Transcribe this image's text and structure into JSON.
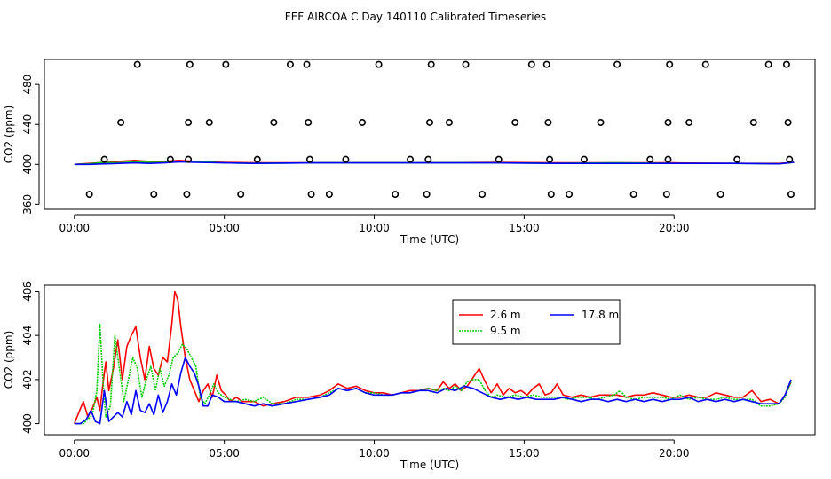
{
  "title": "FEF AIRCOA C  Day 140110  Calibrated Timeseries",
  "chart_data": [
    {
      "type": "scatter+line",
      "xlabel": "Time (UTC)",
      "ylabel": "CO2 (ppm)",
      "xlim": [
        -1.0,
        24.7
      ],
      "ylim": [
        355,
        505
      ],
      "xticks": [
        0,
        5,
        10,
        15,
        20
      ],
      "xtick_labels": [
        "00:00",
        "05:00",
        "10:00",
        "15:00",
        "20:00"
      ],
      "yticks": [
        360,
        400,
        440,
        480
      ],
      "ytick_labels": [
        "360",
        "400",
        "440",
        "480"
      ],
      "calibration_points": [
        {
          "x": 0.5,
          "y": 370
        },
        {
          "x": 1.0,
          "y": 405
        },
        {
          "x": 1.55,
          "y": 442
        },
        {
          "x": 2.1,
          "y": 500
        },
        {
          "x": 2.65,
          "y": 370
        },
        {
          "x": 3.2,
          "y": 405
        },
        {
          "x": 3.75,
          "y": 370
        },
        {
          "x": 3.8,
          "y": 405
        },
        {
          "x": 3.8,
          "y": 442
        },
        {
          "x": 3.85,
          "y": 500
        },
        {
          "x": 4.5,
          "y": 442
        },
        {
          "x": 5.05,
          "y": 500
        },
        {
          "x": 5.55,
          "y": 370
        },
        {
          "x": 6.1,
          "y": 405
        },
        {
          "x": 6.65,
          "y": 442
        },
        {
          "x": 7.2,
          "y": 500
        },
        {
          "x": 7.75,
          "y": 500
        },
        {
          "x": 7.8,
          "y": 442
        },
        {
          "x": 7.85,
          "y": 405
        },
        {
          "x": 7.9,
          "y": 370
        },
        {
          "x": 8.5,
          "y": 370
        },
        {
          "x": 9.05,
          "y": 405
        },
        {
          "x": 9.6,
          "y": 442
        },
        {
          "x": 10.15,
          "y": 500
        },
        {
          "x": 10.7,
          "y": 370
        },
        {
          "x": 11.2,
          "y": 405
        },
        {
          "x": 11.75,
          "y": 370
        },
        {
          "x": 11.8,
          "y": 405
        },
        {
          "x": 11.85,
          "y": 442
        },
        {
          "x": 11.9,
          "y": 500
        },
        {
          "x": 12.5,
          "y": 442
        },
        {
          "x": 13.05,
          "y": 500
        },
        {
          "x": 13.6,
          "y": 370
        },
        {
          "x": 14.15,
          "y": 405
        },
        {
          "x": 14.7,
          "y": 442
        },
        {
          "x": 15.25,
          "y": 500
        },
        {
          "x": 15.75,
          "y": 500
        },
        {
          "x": 15.8,
          "y": 442
        },
        {
          "x": 15.85,
          "y": 405
        },
        {
          "x": 15.9,
          "y": 370
        },
        {
          "x": 16.5,
          "y": 370
        },
        {
          "x": 17.0,
          "y": 405
        },
        {
          "x": 17.55,
          "y": 442
        },
        {
          "x": 18.1,
          "y": 500
        },
        {
          "x": 18.65,
          "y": 370
        },
        {
          "x": 19.2,
          "y": 405
        },
        {
          "x": 19.75,
          "y": 370
        },
        {
          "x": 19.8,
          "y": 405
        },
        {
          "x": 19.8,
          "y": 442
        },
        {
          "x": 19.85,
          "y": 500
        },
        {
          "x": 20.5,
          "y": 442
        },
        {
          "x": 21.05,
          "y": 500
        },
        {
          "x": 21.55,
          "y": 370
        },
        {
          "x": 22.1,
          "y": 405
        },
        {
          "x": 22.65,
          "y": 442
        },
        {
          "x": 23.15,
          "y": 500
        },
        {
          "x": 23.75,
          "y": 500
        },
        {
          "x": 23.8,
          "y": 442
        },
        {
          "x": 23.85,
          "y": 405
        },
        {
          "x": 23.9,
          "y": 370
        }
      ],
      "series": [
        {
          "color": "#ff0000",
          "x": [
            0,
            0.5,
            1,
            1.5,
            2,
            2.5,
            3,
            3.5,
            4,
            5,
            6,
            8,
            10,
            12,
            14,
            16,
            18,
            20,
            22,
            23.5,
            24
          ],
          "values": [
            400,
            401,
            402,
            403,
            404,
            403,
            403,
            404,
            403,
            402,
            401.5,
            401.5,
            401.5,
            401.5,
            402,
            401.5,
            401.5,
            401.5,
            401,
            401,
            402
          ]
        },
        {
          "color": "#00cc00",
          "x": [
            0,
            0.5,
            1,
            1.5,
            2,
            2.5,
            3,
            3.5,
            4,
            5,
            6,
            8,
            10,
            12,
            14,
            16,
            18,
            20,
            22,
            23.5,
            24
          ],
          "values": [
            400,
            400.5,
            402,
            401.5,
            402.5,
            402,
            402,
            403,
            403,
            401.5,
            401,
            401.5,
            401.5,
            401.5,
            401.5,
            401,
            401.5,
            401,
            401,
            400.5,
            402
          ]
        },
        {
          "color": "#0000ff",
          "x": [
            0,
            0.5,
            1,
            1.5,
            2,
            2.5,
            3,
            3.5,
            4,
            5,
            6,
            8,
            10,
            12,
            14,
            16,
            18,
            20,
            22,
            23.5,
            24
          ],
          "values": [
            400,
            400,
            400.5,
            401,
            401.5,
            401,
            401.5,
            402.5,
            402,
            401.5,
            401,
            401.5,
            401.5,
            401.5,
            401.5,
            401,
            401,
            401,
            401,
            400.5,
            402
          ]
        }
      ]
    },
    {
      "type": "line",
      "xlabel": "Time (UTC)",
      "ylabel": "CO2 (ppm)",
      "xlim": [
        -1.0,
        24.7
      ],
      "ylim": [
        399.5,
        406.3
      ],
      "xticks": [
        0,
        5,
        10,
        15,
        20
      ],
      "xtick_labels": [
        "00:00",
        "05:00",
        "10:00",
        "15:00",
        "20:00"
      ],
      "yticks": [
        400,
        402,
        404,
        406
      ],
      "ytick_labels": [
        "400",
        "402",
        "404",
        "406"
      ],
      "legend": {
        "position": "top-center",
        "entries": [
          "2.6 m",
          "9.5 m",
          "17.8 m"
        ]
      },
      "series": [
        {
          "name": "2.6 m",
          "color": "#ff0000",
          "style": "solid",
          "x": [
            0.0,
            0.15,
            0.3,
            0.45,
            0.6,
            0.75,
            0.85,
            0.95,
            1.05,
            1.15,
            1.3,
            1.45,
            1.6,
            1.75,
            1.9,
            2.05,
            2.2,
            2.35,
            2.5,
            2.65,
            2.8,
            2.95,
            3.1,
            3.25,
            3.35,
            3.45,
            3.55,
            3.7,
            3.85,
            4.0,
            4.15,
            4.3,
            4.45,
            4.6,
            4.75,
            4.9,
            5.05,
            5.2,
            5.4,
            5.6,
            5.8,
            6.0,
            6.3,
            6.6,
            7.0,
            7.4,
            7.8,
            8.2,
            8.5,
            8.8,
            9.1,
            9.4,
            9.7,
            10.0,
            10.3,
            10.6,
            10.9,
            11.2,
            11.5,
            11.8,
            12.1,
            12.3,
            12.5,
            12.7,
            12.9,
            13.1,
            13.3,
            13.5,
            13.7,
            13.9,
            14.1,
            14.3,
            14.5,
            14.7,
            14.9,
            15.1,
            15.3,
            15.5,
            15.7,
            15.9,
            16.1,
            16.3,
            16.6,
            16.9,
            17.2,
            17.5,
            17.8,
            18.1,
            18.4,
            18.7,
            19.0,
            19.3,
            19.6,
            19.9,
            20.2,
            20.5,
            20.8,
            21.1,
            21.4,
            21.7,
            22.0,
            22.3,
            22.6,
            22.9,
            23.2,
            23.5,
            23.7,
            23.9
          ],
          "values": [
            400.0,
            400.5,
            401.0,
            400.3,
            400.7,
            401.2,
            400.6,
            401.8,
            402.8,
            401.5,
            402.5,
            403.8,
            402.0,
            403.5,
            404.0,
            404.4,
            403.0,
            402.0,
            403.5,
            402.5,
            402.2,
            403.0,
            402.8,
            404.5,
            406.0,
            405.6,
            404.4,
            403.0,
            402.0,
            401.5,
            401.0,
            401.5,
            401.8,
            401.2,
            402.2,
            401.5,
            401.3,
            401.0,
            401.2,
            401.0,
            401.0,
            401.0,
            400.8,
            400.9,
            401.0,
            401.2,
            401.2,
            401.3,
            401.5,
            401.8,
            401.6,
            401.7,
            401.5,
            401.4,
            401.4,
            401.3,
            401.4,
            401.5,
            401.5,
            401.6,
            401.5,
            401.9,
            401.6,
            401.8,
            401.5,
            401.7,
            402.1,
            402.5,
            401.9,
            401.4,
            401.8,
            401.3,
            401.6,
            401.4,
            401.5,
            401.3,
            401.6,
            401.8,
            401.3,
            401.4,
            401.8,
            401.3,
            401.2,
            401.3,
            401.2,
            401.3,
            401.3,
            401.3,
            401.2,
            401.3,
            401.3,
            401.4,
            401.3,
            401.2,
            401.2,
            401.3,
            401.2,
            401.2,
            401.4,
            401.3,
            401.2,
            401.2,
            401.5,
            401.0,
            401.1,
            400.9,
            401.3,
            401.9
          ]
        },
        {
          "name": "9.5 m",
          "color": "#00cc00",
          "style": "dotted",
          "x": [
            0.0,
            0.3,
            0.6,
            0.75,
            0.85,
            0.95,
            1.05,
            1.2,
            1.35,
            1.5,
            1.65,
            1.8,
            1.95,
            2.1,
            2.25,
            2.4,
            2.55,
            2.7,
            2.85,
            3.0,
            3.15,
            3.3,
            3.45,
            3.6,
            3.75,
            3.9,
            4.05,
            4.2,
            4.35,
            4.5,
            4.65,
            4.8,
            5.0,
            5.2,
            5.4,
            5.7,
            6.0,
            6.3,
            6.6,
            7.0,
            7.4,
            7.8,
            8.2,
            8.5,
            8.8,
            9.1,
            9.4,
            9.7,
            10.0,
            10.3,
            10.6,
            10.9,
            11.2,
            11.5,
            11.8,
            12.1,
            12.3,
            12.5,
            12.7,
            12.9,
            13.1,
            13.3,
            13.5,
            13.7,
            13.9,
            14.1,
            14.4,
            14.7,
            15.0,
            15.3,
            15.6,
            15.9,
            16.2,
            16.5,
            16.8,
            17.1,
            17.4,
            17.7,
            18.0,
            18.2,
            18.4,
            18.7,
            19.0,
            19.3,
            19.6,
            19.9,
            20.2,
            20.5,
            20.8,
            21.1,
            21.4,
            21.7,
            22.0,
            22.3,
            22.6,
            22.9,
            23.2,
            23.5,
            23.7,
            23.9
          ],
          "values": [
            400.0,
            400.0,
            400.4,
            401.5,
            404.5,
            402.0,
            400.3,
            400.8,
            404.0,
            402.5,
            401.0,
            402.0,
            403.0,
            402.5,
            401.2,
            402.0,
            402.6,
            401.5,
            402.5,
            401.7,
            402.2,
            403.0,
            403.2,
            403.6,
            403.4,
            403.0,
            402.6,
            401.2,
            400.9,
            401.3,
            401.8,
            401.4,
            401.2,
            401.1,
            401.0,
            401.1,
            401.0,
            401.2,
            400.9,
            400.9,
            401.1,
            401.1,
            401.2,
            401.4,
            401.6,
            401.5,
            401.6,
            401.4,
            401.4,
            401.3,
            401.3,
            401.4,
            401.4,
            401.5,
            401.6,
            401.5,
            401.6,
            401.5,
            401.7,
            401.5,
            401.9,
            402.0,
            402.0,
            401.5,
            401.2,
            401.3,
            401.2,
            401.3,
            401.2,
            401.3,
            401.2,
            401.2,
            401.2,
            401.1,
            401.2,
            401.2,
            401.1,
            401.2,
            401.3,
            401.5,
            401.2,
            401.1,
            401.2,
            401.2,
            401.2,
            401.1,
            401.3,
            401.1,
            401.2,
            401.1,
            401.1,
            401.2,
            401.1,
            401.1,
            401.1,
            400.8,
            400.8,
            400.9,
            401.2,
            401.9
          ]
        },
        {
          "name": "17.8 m",
          "color": "#0000ff",
          "style": "solid",
          "x": [
            0.0,
            0.2,
            0.4,
            0.55,
            0.7,
            0.85,
            1.0,
            1.15,
            1.3,
            1.45,
            1.6,
            1.75,
            1.9,
            2.05,
            2.2,
            2.35,
            2.5,
            2.65,
            2.8,
            2.95,
            3.1,
            3.25,
            3.4,
            3.55,
            3.7,
            3.85,
            4.0,
            4.15,
            4.3,
            4.45,
            4.6,
            4.8,
            5.0,
            5.2,
            5.4,
            5.7,
            6.0,
            6.3,
            6.6,
            7.0,
            7.4,
            7.8,
            8.2,
            8.5,
            8.8,
            9.1,
            9.4,
            9.7,
            10.0,
            10.3,
            10.6,
            10.9,
            11.2,
            11.5,
            11.8,
            12.1,
            12.4,
            12.7,
            13.0,
            13.3,
            13.6,
            13.9,
            14.2,
            14.5,
            14.8,
            15.1,
            15.4,
            15.7,
            16.0,
            16.3,
            16.6,
            16.9,
            17.2,
            17.5,
            17.8,
            18.1,
            18.4,
            18.7,
            19.0,
            19.3,
            19.6,
            19.9,
            20.2,
            20.5,
            20.8,
            21.1,
            21.4,
            21.7,
            22.0,
            22.3,
            22.6,
            22.9,
            23.2,
            23.5,
            23.7,
            23.9
          ],
          "values": [
            400.0,
            400.0,
            400.2,
            400.6,
            400.1,
            400.0,
            401.5,
            400.1,
            400.3,
            400.5,
            400.3,
            401.0,
            400.4,
            401.5,
            400.6,
            400.5,
            400.9,
            400.4,
            401.3,
            400.5,
            401.0,
            401.8,
            401.3,
            402.3,
            403.0,
            402.6,
            402.3,
            401.7,
            400.8,
            400.8,
            401.3,
            401.2,
            401.0,
            401.0,
            401.0,
            400.9,
            400.8,
            400.9,
            400.8,
            400.9,
            401.0,
            401.1,
            401.2,
            401.3,
            401.6,
            401.5,
            401.6,
            401.4,
            401.3,
            401.3,
            401.3,
            401.4,
            401.4,
            401.5,
            401.5,
            401.4,
            401.6,
            401.5,
            401.7,
            401.6,
            401.4,
            401.2,
            401.1,
            401.2,
            401.1,
            401.2,
            401.1,
            401.1,
            401.1,
            401.2,
            401.1,
            401.0,
            401.1,
            401.1,
            401.0,
            401.1,
            401.0,
            401.1,
            401.0,
            401.1,
            401.0,
            401.1,
            401.1,
            401.2,
            401.0,
            401.1,
            401.0,
            401.1,
            401.0,
            401.1,
            401.0,
            400.9,
            400.9,
            400.9,
            401.3,
            402.0
          ]
        }
      ]
    }
  ]
}
